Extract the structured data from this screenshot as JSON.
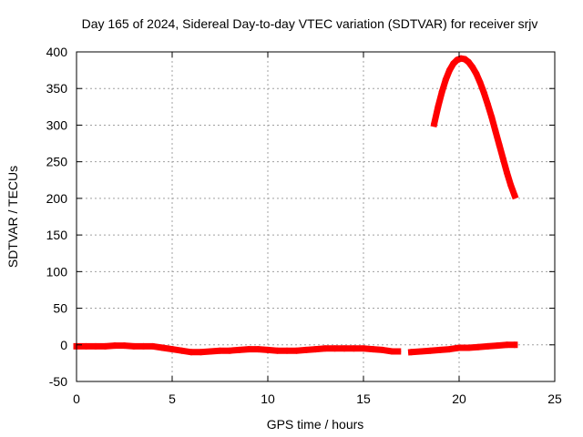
{
  "chart_data": {
    "type": "line",
    "title": "Day 165 of 2024, Sidereal Day-to-day VTEC variation (SDTVAR) for receiver srjv",
    "xlabel": "GPS time / hours",
    "ylabel": "SDTVAR / TECUs",
    "xlim": [
      0,
      25
    ],
    "ylim": [
      -50,
      400
    ],
    "xticks": [
      0,
      5,
      10,
      15,
      20,
      25
    ],
    "yticks": [
      -50,
      0,
      50,
      100,
      150,
      200,
      250,
      300,
      350,
      400
    ],
    "grid": true,
    "series_color": "#ff0000",
    "series": [
      {
        "x": [
          0,
          0.5,
          1,
          1.5,
          2,
          2.5,
          3,
          3.5,
          4,
          4.5,
          5,
          5.5,
          6,
          6.5,
          7,
          7.5,
          8,
          8.5,
          9,
          9.5,
          10,
          10.5,
          11,
          11.5,
          12,
          12.5,
          13,
          13.5,
          14,
          14.5,
          15,
          15.5,
          16,
          16.5,
          16.8
        ],
        "y": [
          -2,
          -2,
          -2,
          -2,
          -1,
          -1,
          -2,
          -2,
          -2,
          -4,
          -6,
          -8,
          -10,
          -10,
          -9,
          -8,
          -8,
          -7,
          -6,
          -6,
          -7,
          -8,
          -8,
          -8,
          -7,
          -6,
          -5,
          -5,
          -5,
          -5,
          -5,
          -6,
          -7,
          -9,
          -9
        ]
      },
      {
        "x": [
          17.5,
          18,
          18.5,
          19,
          19.5,
          20,
          20.5,
          21,
          21.5,
          22,
          22.5,
          22.9
        ],
        "y": [
          -10,
          -9,
          -8,
          -7,
          -6,
          -4,
          -4,
          -3,
          -2,
          -1,
          0,
          0
        ]
      },
      {
        "x": [
          18.7,
          18.9,
          19.1,
          19.3,
          19.5,
          19.7,
          19.9,
          20.1,
          20.3,
          20.5,
          20.7,
          20.9,
          21.1,
          21.3,
          21.5,
          21.7,
          21.9,
          22.1,
          22.3,
          22.5,
          22.7,
          22.9
        ],
        "y": [
          302,
          325,
          345,
          362,
          375,
          384,
          389,
          391,
          390,
          386,
          379,
          370,
          358,
          344,
          328,
          311,
          292,
          273,
          254,
          235,
          218,
          204
        ]
      }
    ]
  }
}
